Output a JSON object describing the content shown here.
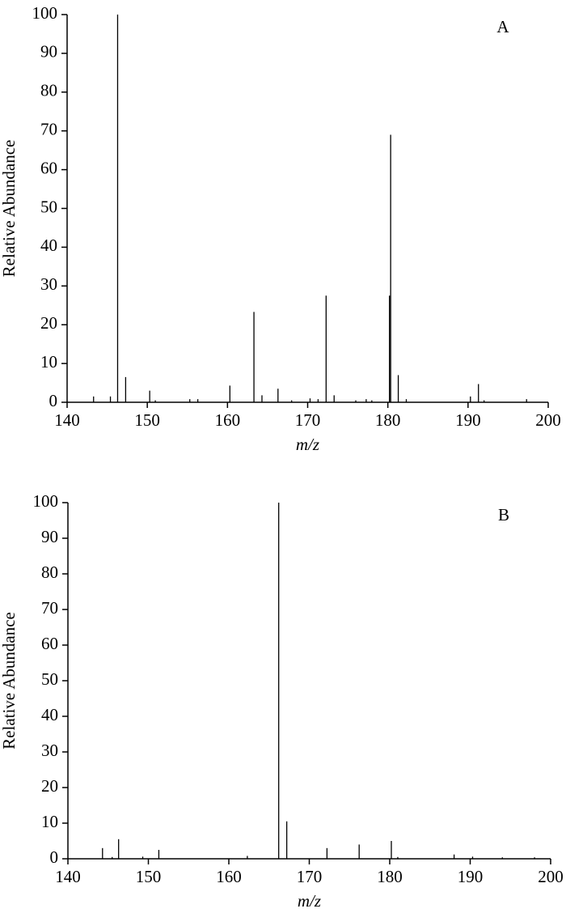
{
  "chart_data": [
    {
      "type": "stem",
      "annotation": "A",
      "xlabel": "m/z",
      "ylabel": "Relative Abundance",
      "color": "#000000",
      "x": [
        143.3,
        145.4,
        146.3,
        147.3,
        150.3,
        151.0,
        155.3,
        156.3,
        160.3,
        163.3,
        164.3,
        166.3,
        168.0,
        170.3,
        171.3,
        172.3,
        173.3,
        176.0,
        177.3,
        178.0,
        180.2,
        180.35,
        181.3,
        182.3,
        190.3,
        191.3,
        192.0,
        197.3
      ],
      "values": [
        1.5,
        1.5,
        100,
        6.5,
        3,
        0.5,
        0.8,
        0.8,
        4.3,
        23.3,
        1.8,
        3.5,
        0.5,
        1,
        0.8,
        27.5,
        1.8,
        0.5,
        0.8,
        0.5,
        27.5,
        69,
        7,
        0.8,
        1.5,
        4.7,
        0.5,
        0.8
      ],
      "xlim": [
        140,
        200
      ],
      "ylim": [
        0,
        100
      ],
      "xticks": [
        140,
        150,
        160,
        170,
        180,
        190,
        200
      ],
      "yticks": [
        0,
        10,
        20,
        30,
        40,
        50,
        60,
        70,
        80,
        90,
        100
      ]
    },
    {
      "type": "stem",
      "annotation": "B",
      "xlabel": "m/z",
      "ylabel": "Relative Abundance",
      "color": "#000000",
      "x": [
        144.3,
        145.5,
        146.3,
        149.3,
        151.3,
        162.3,
        166.2,
        167.2,
        172.2,
        176.2,
        180.2,
        181.0,
        188.0,
        190.3,
        194.0,
        198.0
      ],
      "values": [
        3,
        0.5,
        5.5,
        0.6,
        2.5,
        0.8,
        100,
        10.5,
        3,
        4,
        5,
        0.5,
        1.2,
        0.6,
        0.4,
        0.4
      ],
      "xlim": [
        140,
        200
      ],
      "ylim": [
        0,
        100
      ],
      "xticks": [
        140,
        150,
        160,
        170,
        180,
        190,
        200
      ],
      "yticks": [
        0,
        10,
        20,
        30,
        40,
        50,
        60,
        70,
        80,
        90,
        100
      ]
    }
  ]
}
